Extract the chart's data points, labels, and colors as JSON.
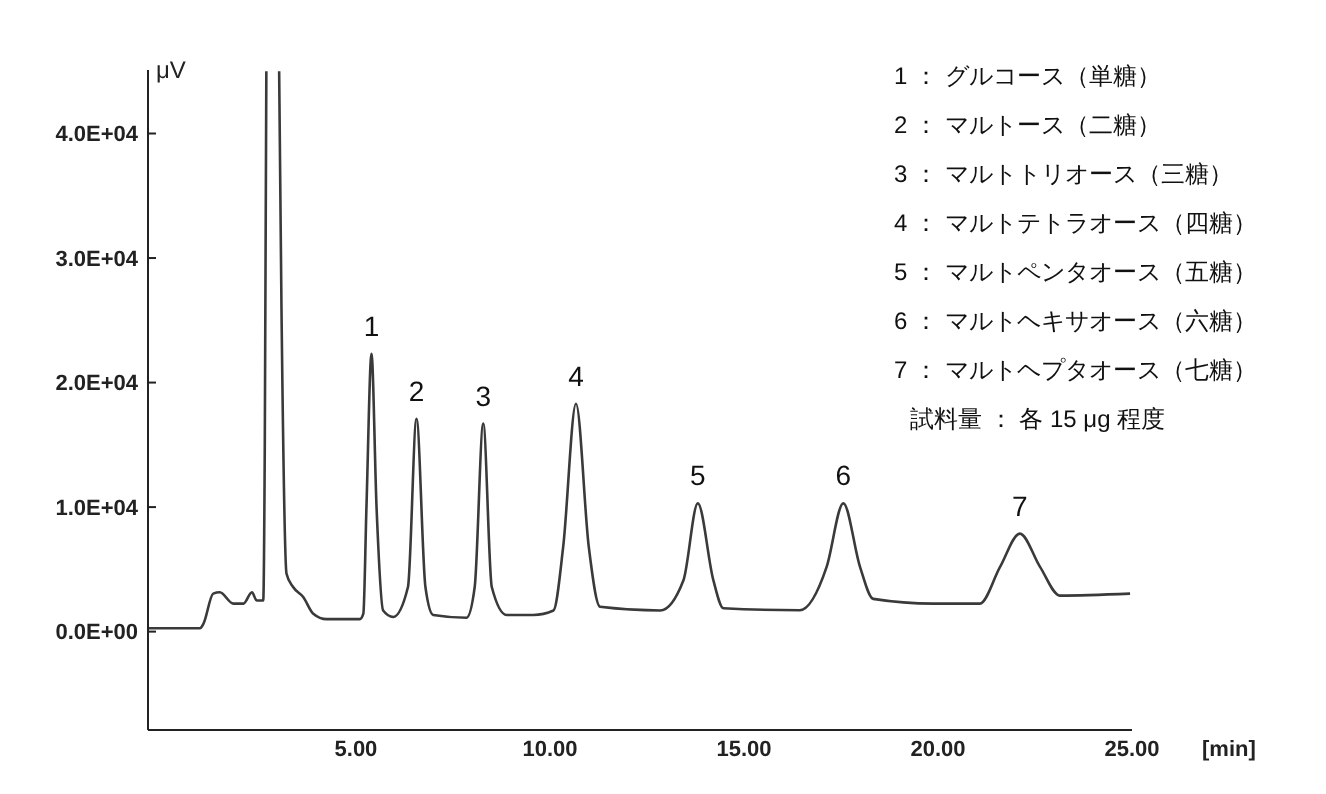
{
  "chart_data": {
    "type": "line",
    "ylabel": "μV",
    "xlabel": "[min]",
    "xlim": [
      -0.36,
      25
    ],
    "ylim": [
      -7900,
      45100
    ],
    "xticks": [
      {
        "value": 5,
        "label": "5.00"
      },
      {
        "value": 10,
        "label": "10.00"
      },
      {
        "value": 15,
        "label": "15.00"
      },
      {
        "value": 20,
        "label": "20.00"
      },
      {
        "value": 25,
        "label": "25.00"
      }
    ],
    "yticks": [
      {
        "value": 0,
        "label": "0.0E+00"
      },
      {
        "value": 10000,
        "label": "1.0E+04"
      },
      {
        "value": 20000,
        "label": "2.0E+04"
      },
      {
        "value": 30000,
        "label": "3.0E+04"
      },
      {
        "value": 40000,
        "label": "4.0E+04"
      }
    ],
    "grid": false,
    "marker": "none",
    "line_style": "solid",
    "series": [
      {
        "color": "#3a3a3a",
        "x": [
          -0.36,
          0.98,
          1.07,
          1.32,
          1.49,
          1.84,
          2.1,
          2.32,
          2.44,
          2.61,
          2.65,
          2.69,
          2.85,
          3.02,
          3.08,
          3.21,
          3.38,
          3.64,
          3.9,
          4.24,
          5.1,
          5.19,
          5.27,
          5.4,
          5.53,
          5.7,
          5.96,
          6.34,
          6.56,
          6.79,
          6.99,
          7.85,
          8.06,
          8.28,
          8.5,
          8.88,
          9.57,
          10.09,
          10.34,
          10.67,
          11.0,
          11.29,
          12.84,
          13.44,
          13.81,
          14.21,
          14.47,
          16.44,
          17.13,
          17.56,
          17.99,
          18.33,
          19.88,
          21.08,
          21.6,
          22.11,
          22.63,
          23.14,
          24.95
        ],
        "values": [
          270,
          270,
          640,
          3050,
          3160,
          2250,
          2250,
          3160,
          2500,
          2500,
          15000,
          45000,
          null,
          45000,
          26000,
          4650,
          3580,
          2780,
          1440,
          1000,
          1000,
          1440,
          10000,
          22300,
          10000,
          1700,
          1180,
          3580,
          17100,
          3580,
          1340,
          1120,
          3580,
          16700,
          3580,
          1340,
          1340,
          1700,
          6800,
          18300,
          6800,
          2000,
          1700,
          4130,
          10300,
          4130,
          1880,
          1720,
          5200,
          10300,
          5200,
          2630,
          2250,
          2250,
          5200,
          7870,
          5200,
          2890,
          3050
        ]
      }
    ],
    "annotations": [
      {
        "text": "1",
        "x": 5.4,
        "y": 22300
      },
      {
        "text": "2",
        "x": 6.56,
        "y": 17100
      },
      {
        "text": "3",
        "x": 8.28,
        "y": 16700
      },
      {
        "text": "4",
        "x": 10.67,
        "y": 18300
      },
      {
        "text": "5",
        "x": 13.81,
        "y": 10300
      },
      {
        "text": "6",
        "x": 17.56,
        "y": 10300
      },
      {
        "text": "7",
        "x": 22.11,
        "y": 7870
      },
      "1 ： グルコース（単糖）",
      "2 ： マルトース（二糖）",
      "3 ： マルトトリオース（三糖）",
      "4 ： マルトテトラオース（四糖）",
      "5 ： マルトペンタオース（五糖）",
      "6 ： マルトヘキサオース（六糖）",
      "7 ： マルトヘプタオース（七糖）",
      "試料量 ： 各 15 μg 程度"
    ]
  }
}
